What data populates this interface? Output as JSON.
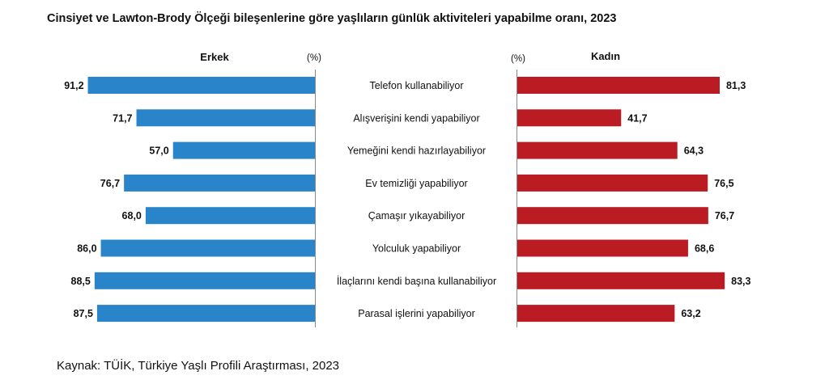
{
  "title": "Cinsiyet ve Lawton-Brody Ölçeği bileşenlerine göre yaşlıların günlük aktiviteleri yapabilme oranı, 2023",
  "source": "Kaynak: TÜİK, Türkiye Yaşlı Profili Araştırması, 2023",
  "chart_data": {
    "type": "bar",
    "orientation": "horizontal",
    "layout": "butterfly",
    "unit": "(%)",
    "categories": [
      "Telefon kullanabiliyor",
      "Alışverişini kendi yapabiliyor",
      "Yemeğini kendi hazırlayabiliyor",
      "Ev temizliği yapabiliyor",
      "Çamaşır yıkayabiliyor",
      "Yolculuk yapabiliyor",
      "İlaçlarını kendi başına kullanabiliyor",
      "Parasal işlerini yapabiliyor"
    ],
    "series": [
      {
        "name": "Erkek",
        "color": "#2a84c9",
        "labels": [
          "91,2",
          "71,7",
          "57,0",
          "76,7",
          "68,0",
          "86,0",
          "88,5",
          "87,5"
        ],
        "values": [
          91.2,
          71.7,
          57.0,
          76.7,
          68.0,
          86.0,
          88.5,
          87.5
        ]
      },
      {
        "name": "Kadın",
        "color": "#bb1c24",
        "labels": [
          "81,3",
          "41,7",
          "64,3",
          "76,5",
          "76,7",
          "68,6",
          "83,3",
          "63,2"
        ],
        "values": [
          81.3,
          41.7,
          64.3,
          76.5,
          76.7,
          68.6,
          83.3,
          63.2
        ]
      }
    ],
    "xlim": [
      0,
      100
    ],
    "grid": false,
    "legend": "none"
  }
}
